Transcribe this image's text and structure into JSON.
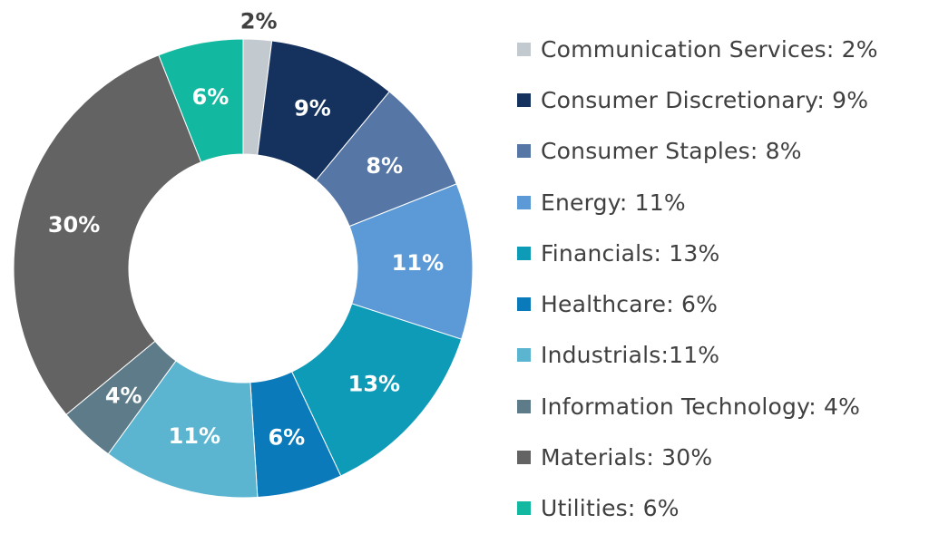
{
  "chart_data": {
    "type": "pie",
    "donut": true,
    "legend_position": "right",
    "slices": [
      {
        "name": "Communication Services",
        "value": 2,
        "label": "2%",
        "legend": "Communication Services: 2%",
        "color": "#c2c9cf",
        "label_color": "#404040"
      },
      {
        "name": "Consumer Discretionary",
        "value": 9,
        "label": "9%",
        "legend": "Consumer Discretionary: 9%",
        "color": "#15325f",
        "label_color": "#ffffff"
      },
      {
        "name": "Consumer Staples",
        "value": 8,
        "label": "8%",
        "legend": "Consumer Staples: 8%",
        "color": "#5676a6",
        "label_color": "#ffffff"
      },
      {
        "name": "Energy",
        "value": 11,
        "label": "11%",
        "legend": "Energy: 11%",
        "color": "#5b9ad6",
        "label_color": "#ffffff"
      },
      {
        "name": "Financials",
        "value": 13,
        "label": "13%",
        "legend": "Financials: 13%",
        "color": "#0e9bb8",
        "label_color": "#ffffff"
      },
      {
        "name": "Healthcare",
        "value": 6,
        "label": "6%",
        "legend": "Healthcare: 6%",
        "color": "#0a7abb",
        "label_color": "#ffffff"
      },
      {
        "name": "Industrials",
        "value": 11,
        "label": "11%",
        "legend": "Industrials:11%",
        "color": "#5cb5d0",
        "label_color": "#ffffff"
      },
      {
        "name": "Information Technology",
        "value": 4,
        "label": "4%",
        "legend": "Information Technology: 4%",
        "color": "#5d7b89",
        "label_color": "#ffffff"
      },
      {
        "name": "Materials",
        "value": 30,
        "label": "30%",
        "legend": "Materials: 30%",
        "color": "#636363",
        "label_color": "#ffffff"
      },
      {
        "name": "Utilities",
        "value": 6,
        "label": "6%",
        "legend": "Utilities: 6%",
        "color": "#12b8a0",
        "label_color": "#ffffff"
      }
    ]
  }
}
